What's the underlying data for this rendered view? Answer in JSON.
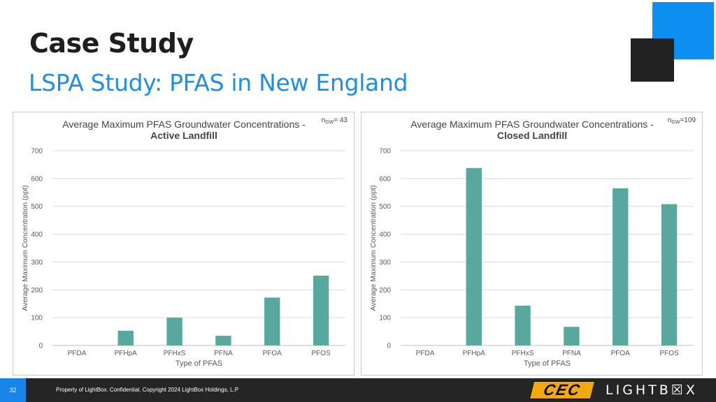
{
  "slide": {
    "title": "Case Study",
    "subtitle": "LSPA Study: PFAS in New England"
  },
  "colors": {
    "accent": "#1f8ee6",
    "bar": "#58a8a0",
    "footer": "#252525",
    "page_badge": "#1786e8",
    "cec": "#f2a80f"
  },
  "chart_data": [
    {
      "type": "bar",
      "title_line1": "Average Maximum PFAS Groundwater Concentrations -",
      "title_line2": "Active Landfill",
      "n_prefix": "n",
      "n_sub": "GW",
      "n_value": "= 43",
      "xlabel": "Type of PFAS",
      "ylabel": "Average Maximum Concentration (ppt)",
      "ylim": [
        0,
        700
      ],
      "yticks": [
        0,
        100,
        200,
        300,
        400,
        500,
        600,
        700
      ],
      "categories": [
        "PFDA",
        "PFHpA",
        "PFHxS",
        "PFNA",
        "PFOA",
        "PFOS"
      ],
      "values": [
        0,
        53,
        100,
        35,
        172,
        251
      ],
      "grid": true
    },
    {
      "type": "bar",
      "title_line1": "Average Maximum PFAS Groundwater Concentrations -",
      "title_line2": "Closed Landfill",
      "n_prefix": "n",
      "n_sub": "GW",
      "n_value": "=109",
      "xlabel": "Type of PFAS",
      "ylabel": "Average Maximum Concentration (ppt)",
      "ylim": [
        0,
        700
      ],
      "yticks": [
        0,
        100,
        200,
        300,
        400,
        500,
        600,
        700
      ],
      "categories": [
        "PFDA",
        "PFHpA",
        "PFHxS",
        "PFNA",
        "PFOA",
        "PFOS"
      ],
      "values": [
        0,
        638,
        143,
        67,
        565,
        508
      ],
      "grid": true
    }
  ],
  "footer": {
    "page_number": "32",
    "confidential_text": "Property of LightBox. Confidential. Copyright 2024 LightBox Holdings, L.P",
    "cec_logo_text": "CEC",
    "brand_logo_text": "LIGHTB☒X"
  }
}
